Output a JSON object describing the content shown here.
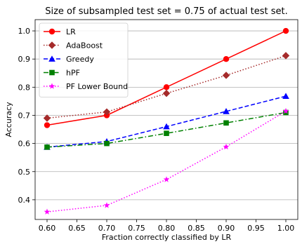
{
  "chart_data": {
    "type": "line",
    "title": "Size of subsampled test set = 0.75 of actual test set.",
    "xlabel": "Fraction correctly classified by LR",
    "ylabel": "Accuracy",
    "x": [
      0.6,
      0.7,
      0.8,
      0.9,
      1.0
    ],
    "xlim": [
      0.58,
      1.02
    ],
    "ylim": [
      0.33,
      1.04
    ],
    "xticks": [
      "0.60",
      "0.65",
      "0.70",
      "0.75",
      "0.80",
      "0.85",
      "0.90",
      "0.95",
      "1.00"
    ],
    "yticks": [
      "0.4",
      "0.5",
      "0.6",
      "0.7",
      "0.8",
      "0.9",
      "1.0"
    ],
    "grid": "horizontal",
    "legend_position": "top-left",
    "series": [
      {
        "name": "LR",
        "values": [
          0.665,
          0.7,
          0.8,
          0.9,
          1.0
        ],
        "color": "#ff0000",
        "line_style": "solid",
        "marker": "circle"
      },
      {
        "name": "AdaBoost",
        "values": [
          0.69,
          0.712,
          0.778,
          0.842,
          0.912
        ],
        "color": "#a52a2a",
        "line_style": "dotted",
        "marker": "diamond"
      },
      {
        "name": "Greedy",
        "values": [
          0.587,
          0.607,
          0.66,
          0.714,
          0.768
        ],
        "color": "#0000ff",
        "line_style": "dashed",
        "marker": "triangle"
      },
      {
        "name": "hPF",
        "values": [
          0.587,
          0.6,
          0.636,
          0.673,
          0.71
        ],
        "color": "#008000",
        "line_style": "dashdot",
        "marker": "square"
      },
      {
        "name": "PF Lower Bound",
        "values": [
          0.357,
          0.38,
          0.472,
          0.588,
          0.715
        ],
        "color": "#ff00ff",
        "line_style": "dotted",
        "marker": "star"
      }
    ]
  }
}
